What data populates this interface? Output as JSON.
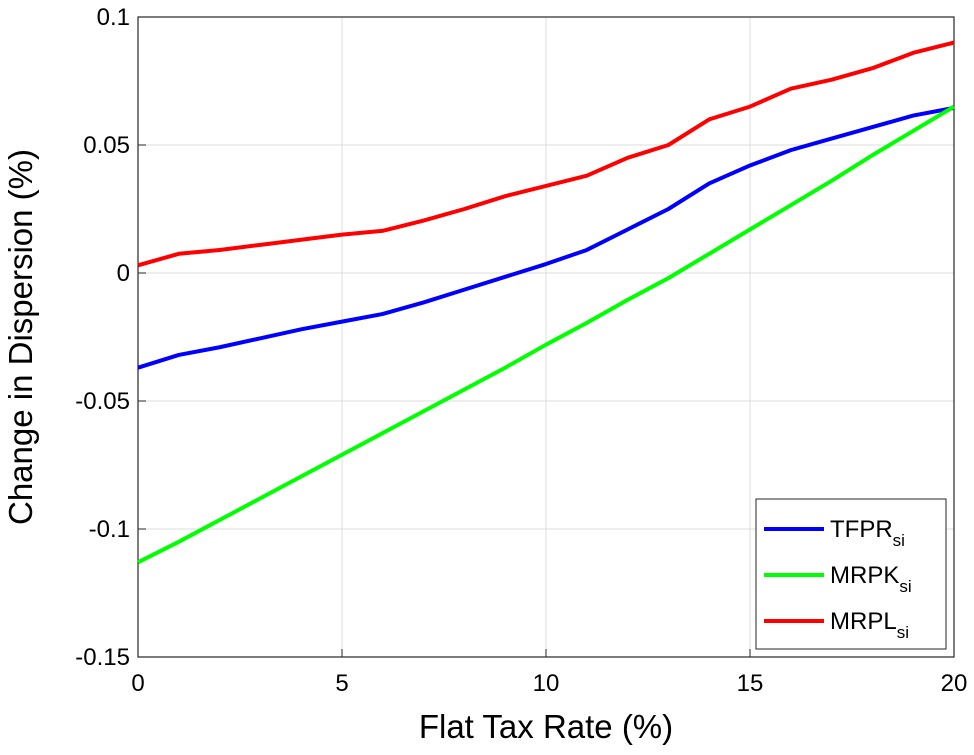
{
  "chart_data": {
    "type": "line",
    "x_label": "Flat Tax Rate (%)",
    "y_label": "Change in Dispersion (%)",
    "x": [
      0,
      1,
      2,
      3,
      4,
      5,
      6,
      7,
      8,
      9,
      10,
      11,
      12,
      13,
      14,
      15,
      16,
      17,
      18,
      19,
      20
    ],
    "series": [
      {
        "name": "TFPR",
        "subscript": "si",
        "color": "#0000ff",
        "values": [
          -0.037,
          -0.032,
          -0.029,
          -0.0255,
          -0.022,
          -0.019,
          -0.016,
          -0.0115,
          -0.0065,
          -0.0015,
          0.0035,
          0.009,
          0.017,
          0.025,
          0.035,
          0.042,
          0.048,
          0.0525,
          0.057,
          0.0615,
          0.0645
        ]
      },
      {
        "name": "MRPK",
        "subscript": "si",
        "color": "#00ff00",
        "values": [
          -0.113,
          -0.105,
          -0.0965,
          -0.088,
          -0.0795,
          -0.071,
          -0.0625,
          -0.054,
          -0.0455,
          -0.037,
          -0.028,
          -0.0195,
          -0.0105,
          -0.002,
          0.0075,
          0.017,
          0.0265,
          0.036,
          0.046,
          0.0555,
          0.065
        ]
      },
      {
        "name": "MRPL",
        "subscript": "si",
        "color": "#ff0000",
        "values": [
          0.003,
          0.0075,
          0.009,
          0.011,
          0.013,
          0.015,
          0.0165,
          0.0205,
          0.025,
          0.03,
          0.034,
          0.038,
          0.045,
          0.05,
          0.06,
          0.065,
          0.072,
          0.0755,
          0.08,
          0.086,
          0.09
        ]
      }
    ],
    "xlim": [
      0,
      20
    ],
    "xticks": [
      0,
      5,
      10,
      15,
      20
    ],
    "ylim": [
      -0.15,
      0.1
    ],
    "yticks": [
      -0.15,
      -0.1,
      -0.05,
      0,
      0.05,
      0.1
    ],
    "grid": true,
    "legend": "lower right"
  }
}
